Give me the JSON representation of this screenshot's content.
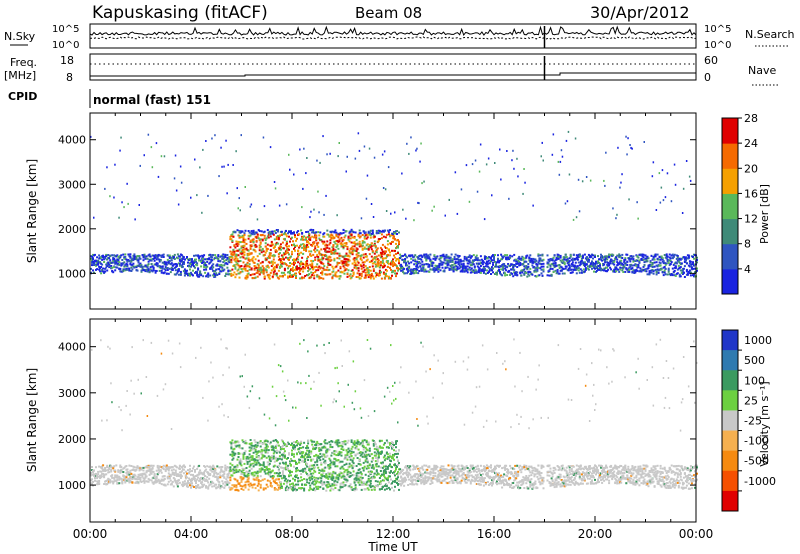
{
  "header": {
    "station": "Kapuskasing (fitACF)",
    "beam": "Beam 08",
    "date": "30/Apr/2012"
  },
  "panels": {
    "nsky_label": "N.Sky",
    "nsearch_label": "N.Search",
    "freq_label": "Freq.",
    "freq_unit": "[MHz]",
    "nave_label": "Nave",
    "cpid_label": "CPID",
    "cpid_value": "normal (fast) 151",
    "left_tick_top": "10^5",
    "left_tick_bottom": "10^0",
    "right_tick_top": "10^5",
    "right_tick_bottom": "10^0",
    "freq_tick_top": "18",
    "freq_tick_bottom": "8",
    "nave_tick_top": "60",
    "nave_tick_bottom": "0"
  },
  "chart_data": [
    {
      "type": "heatmap",
      "parameter": "Power",
      "xlabel": "Time UT",
      "ylabel": "Slant Range [km]",
      "ylim": [
        200,
        4600
      ],
      "yticks": [
        "1000",
        "2000",
        "3000",
        "4000"
      ],
      "colorbar_label": "Power [dB]",
      "colorbar_ticks": [
        "4",
        "8",
        "12",
        "16",
        "20",
        "24",
        "28"
      ],
      "colors": [
        "#1a24e0",
        "#2f55c0",
        "#3f8a78",
        "#5ab85a",
        "#f5a000",
        "#f56a00",
        "#e00000"
      ]
    },
    {
      "type": "heatmap",
      "parameter": "Velocity",
      "xlabel": "Time UT",
      "ylabel": "Slant Range [km]",
      "ylim": [
        200,
        4600
      ],
      "yticks": [
        "1000",
        "2000",
        "3000",
        "4000"
      ],
      "colorbar_label": "Velocity [m s⁻¹]",
      "colorbar_ticks": [
        "1000",
        "500",
        "100",
        "25",
        "-25",
        "-100",
        "-500",
        "-1000"
      ],
      "colors": [
        "#2036c8",
        "#2f7ab0",
        "#3b9a60",
        "#6cd040",
        "#c8c8c8",
        "#f5b050",
        "#f58a10",
        "#f55000",
        "#e00000"
      ]
    }
  ],
  "time_axis": {
    "label": "Time UT",
    "ticks": [
      "00:00",
      "04:00",
      "08:00",
      "12:00",
      "16:00",
      "20:00",
      "00:00"
    ]
  }
}
